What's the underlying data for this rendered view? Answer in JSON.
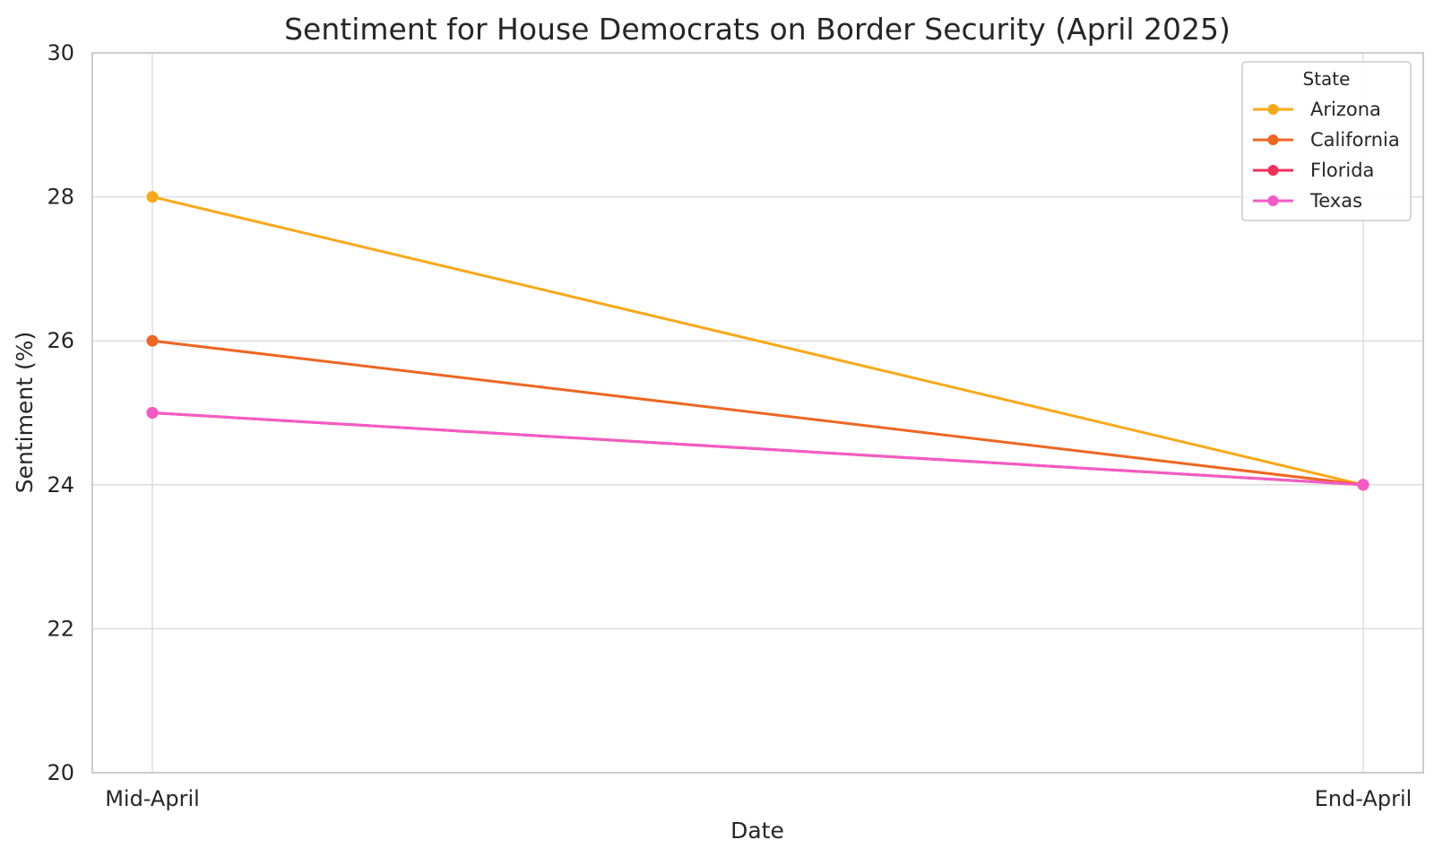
{
  "chart_data": {
    "type": "line",
    "title": "Sentiment for House Democrats on Border Security (April 2025)",
    "xlabel": "Date",
    "ylabel": "Sentiment (%)",
    "categories": [
      "Mid-April",
      "End-April"
    ],
    "ylim": [
      20,
      30
    ],
    "yticks": [
      "20",
      "22",
      "24",
      "26",
      "28",
      "30"
    ],
    "grid": true,
    "legend": {
      "title": "State",
      "placement": "top-right"
    },
    "series": [
      {
        "name": "Arizona",
        "values": [
          28,
          24
        ],
        "color": "#F9A81A"
      },
      {
        "name": "California",
        "values": [
          26,
          24
        ],
        "color": "#EE6622"
      },
      {
        "name": "Florida",
        "values": [
          25,
          24
        ],
        "color": "#F0305A"
      },
      {
        "name": "Texas",
        "values": [
          25,
          24
        ],
        "color": "#F35BC4"
      }
    ]
  }
}
